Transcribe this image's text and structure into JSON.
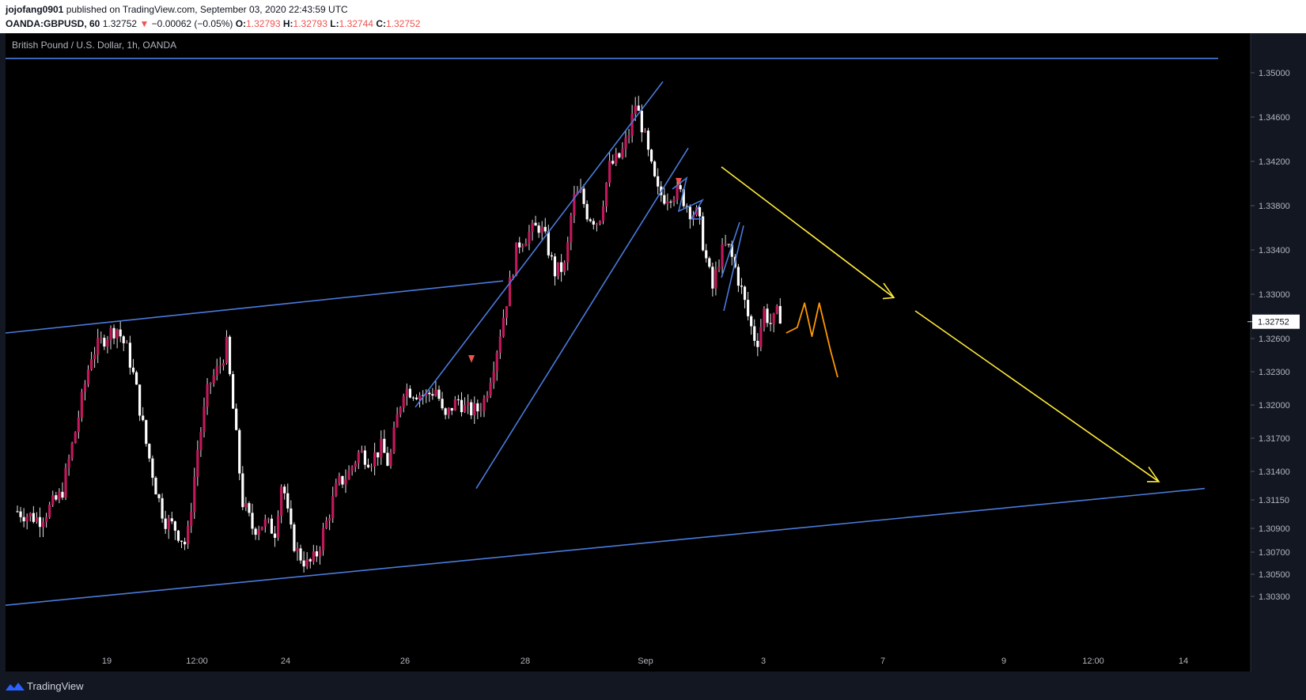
{
  "header": {
    "author": "jojofang0901",
    "published_text": " published on TradingView.com, September 03, 2020 22:43:59 UTC",
    "symbol": "OANDA:GBPUSD, 60",
    "last_price": "1.32752",
    "change_arrow": "▼",
    "change": "−0.00062 (−0.05%)",
    "o_label": "O:",
    "o_value": "1.32793",
    "h_label": "H:",
    "h_value": "1.32793",
    "l_label": "L:",
    "l_value": "1.32744",
    "c_label": "C:",
    "c_value": "1.32752"
  },
  "footer": {
    "brand": "TradingView"
  },
  "chart_data": {
    "type": "candlestick",
    "title": "British Pound / U.S. Dollar, 1h, OANDA",
    "price_axis": {
      "ticks": [
        1.35,
        1.346,
        1.342,
        1.338,
        1.334,
        1.33,
        1.326,
        1.323,
        1.32,
        1.317,
        1.314,
        1.3115,
        1.309,
        1.307,
        1.305,
        1.303
      ],
      "tick_labels": [
        "1.35000",
        "1.34600",
        "1.34200",
        "1.33800",
        "1.33400",
        "1.33000",
        "1.32600",
        "1.32300",
        "1.32000",
        "1.31700",
        "1.31400",
        "1.31150",
        "1.30900",
        "1.30700",
        "1.30500",
        "1.30300"
      ],
      "current_price": 1.32752,
      "current_label": "1.32752"
    },
    "time_axis": {
      "labels": [
        "19",
        "12:00",
        "24",
        "26",
        "28",
        "Sep",
        "3",
        "7",
        "9",
        "12:00",
        "14"
      ]
    },
    "price_path": [
      [
        0,
        1.3105
      ],
      [
        0.6,
        1.3098
      ],
      [
        1.2,
        1.312
      ],
      [
        1.6,
        1.318
      ],
      [
        2.0,
        1.3245
      ],
      [
        2.4,
        1.3262
      ],
      [
        2.7,
        1.327
      ],
      [
        3.0,
        1.3248
      ],
      [
        3.2,
        1.322
      ],
      [
        3.5,
        1.3165
      ],
      [
        3.8,
        1.312
      ],
      [
        4.0,
        1.3098
      ],
      [
        4.3,
        1.309
      ],
      [
        4.6,
        1.3075
      ],
      [
        4.9,
        1.316
      ],
      [
        5.2,
        1.3218
      ],
      [
        5.5,
        1.3235
      ],
      [
        5.7,
        1.3255
      ],
      [
        5.8,
        1.3215
      ],
      [
        6.0,
        1.3155
      ],
      [
        6.1,
        1.3115
      ],
      [
        6.4,
        1.309
      ],
      [
        6.7,
        1.3095
      ],
      [
        7.0,
        1.3088
      ],
      [
        7.2,
        1.3135
      ],
      [
        7.4,
        1.309
      ],
      [
        7.6,
        1.307
      ],
      [
        7.9,
        1.3058
      ],
      [
        8.1,
        1.3065
      ],
      [
        8.4,
        1.3095
      ],
      [
        8.7,
        1.3128
      ],
      [
        9.0,
        1.3138
      ],
      [
        9.3,
        1.3158
      ],
      [
        9.6,
        1.315
      ],
      [
        9.9,
        1.3162
      ],
      [
        10.1,
        1.3145
      ],
      [
        10.3,
        1.3185
      ],
      [
        10.5,
        1.3215
      ],
      [
        10.8,
        1.3212
      ],
      [
        11.1,
        1.3208
      ],
      [
        11.4,
        1.3215
      ],
      [
        11.6,
        1.3185
      ],
      [
        11.8,
        1.3198
      ],
      [
        12.0,
        1.3205
      ],
      [
        12.2,
        1.3195
      ],
      [
        12.5,
        1.3195
      ],
      [
        12.7,
        1.3205
      ],
      [
        13.0,
        1.3245
      ],
      [
        13.3,
        1.3295
      ],
      [
        13.6,
        1.3345
      ],
      [
        13.9,
        1.3355
      ],
      [
        14.2,
        1.3362
      ],
      [
        14.4,
        1.3345
      ],
      [
        14.6,
        1.332
      ],
      [
        14.9,
        1.3325
      ],
      [
        15.1,
        1.3385
      ],
      [
        15.3,
        1.3392
      ],
      [
        15.5,
        1.3372
      ],
      [
        15.8,
        1.3365
      ],
      [
        16.1,
        1.3415
      ],
      [
        16.4,
        1.3425
      ],
      [
        16.6,
        1.3442
      ],
      [
        16.8,
        1.3472
      ],
      [
        17.0,
        1.345
      ],
      [
        17.2,
        1.3418
      ],
      [
        17.4,
        1.3392
      ],
      [
        17.6,
        1.3388
      ],
      [
        17.8,
        1.3392
      ],
      [
        18.0,
        1.3392
      ],
      [
        18.3,
        1.3375
      ],
      [
        18.5,
        1.3372
      ],
      [
        18.7,
        1.3335
      ],
      [
        18.9,
        1.3305
      ],
      [
        19.1,
        1.3335
      ],
      [
        19.3,
        1.3345
      ],
      [
        19.5,
        1.3325
      ],
      [
        19.7,
        1.3302
      ],
      [
        19.9,
        1.3275
      ],
      [
        20.1,
        1.3255
      ],
      [
        20.3,
        1.3285
      ],
      [
        20.5,
        1.3272
      ],
      [
        20.7,
        1.3285
      ],
      [
        20.8,
        1.3275
      ]
    ],
    "annotations": {
      "upper_resistance": [
        [
          0,
          1.3265
        ],
        [
          1.2,
          1.3275
        ]
      ],
      "base_line": [
        [
          0,
          1.3002
        ],
        [
          1.0,
          1.3125
        ]
      ],
      "top_line": 1.3513,
      "forecast_orange": [
        [
          20.9,
          1.3265
        ],
        [
          21.2,
          1.327
        ],
        [
          21.4,
          1.3292
        ],
        [
          21.6,
          1.3262
        ],
        [
          21.8,
          1.3292
        ],
        [
          22.1,
          1.325
        ],
        [
          22.3,
          1.3225
        ]
      ]
    }
  }
}
